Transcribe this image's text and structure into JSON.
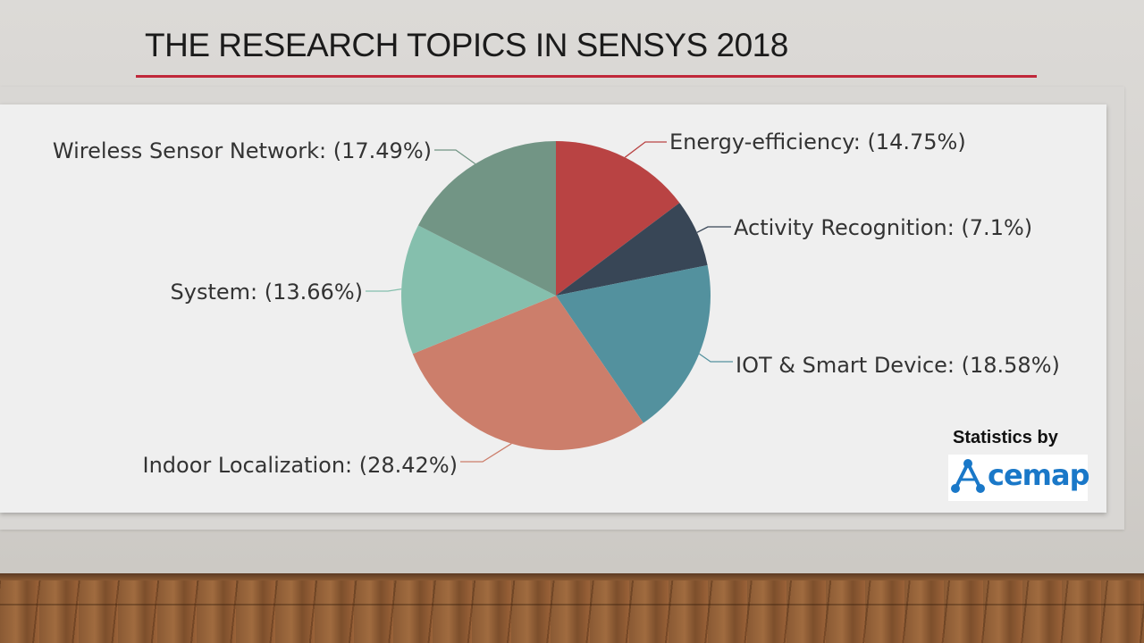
{
  "slide": {
    "title": "THE RESEARCH TOPICS IN SENSYS 2018",
    "stats_label": "Statistics by",
    "logo_text": "cemap",
    "logo_letter": "A"
  },
  "colors": {
    "accent_rule": "#c0283a"
  },
  "chart_data": {
    "type": "pie",
    "start_angle_deg": 0,
    "direction": "clockwise",
    "slices": [
      {
        "label": "Energy-efficiency: (14.75%)",
        "value": 14.75,
        "color": "#b94343"
      },
      {
        "label": "Activity Recognition: (7.1%)",
        "value": 7.1,
        "color": "#384656"
      },
      {
        "label": "IOT & Smart Device: (18.58%)",
        "value": 18.58,
        "color": "#53919e"
      },
      {
        "label": "Indoor Localization: (28.42%)",
        "value": 28.42,
        "color": "#cc7e6b"
      },
      {
        "label": "System: (13.66%)",
        "value": 13.66,
        "color": "#85bfad"
      },
      {
        "label": "Wireless Sensor Network: (17.49%)",
        "value": 17.49,
        "color": "#729585"
      }
    ]
  }
}
